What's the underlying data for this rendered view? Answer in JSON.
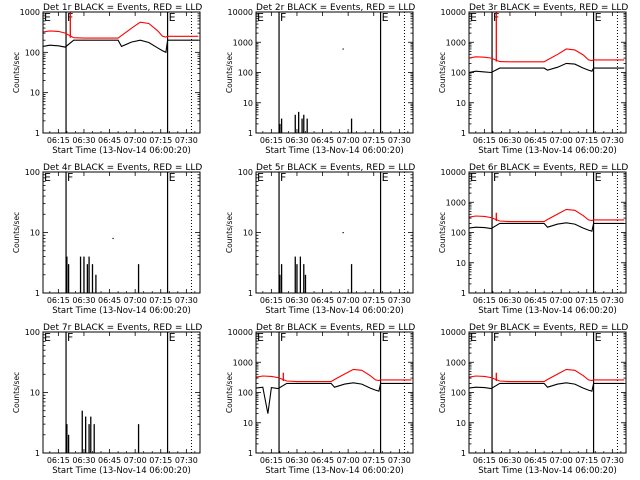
{
  "figure": {
    "title_suffix": "BLACK = Events, RED = LLD",
    "xlabel": "Start Time (13-Nov-14 06:00:20)",
    "ylabel": "Counts/sec",
    "x_ticks": [
      "06:15",
      "06:30",
      "06:45",
      "07:00",
      "07:15",
      "07:30"
    ],
    "x_tick_minutes": [
      15,
      30,
      45,
      60,
      75,
      90
    ],
    "xlim_minutes": [
      6,
      98
    ],
    "markers": {
      "F": {
        "label": "F",
        "x_minutes": 19.5
      },
      "E_solid": {
        "label": "E",
        "x_minutes": 79
      },
      "E_dotted": {
        "x_minutes": 93
      }
    },
    "colors": {
      "events": "#000000",
      "lld": "#ff0000"
    }
  },
  "chart_data": [
    {
      "type": "line",
      "title": "Det 1r BLACK = Events, RED = LLD",
      "det": "Det 1r",
      "yscale": "log",
      "ylim": [
        1,
        1000
      ],
      "y_ticks": [
        "1000",
        "100",
        "10",
        "1"
      ],
      "series": [
        {
          "name": "Events",
          "color": "#000000",
          "x": [
            6,
            10,
            15,
            19,
            24,
            30,
            40,
            50,
            52,
            58,
            63,
            68,
            73,
            76,
            78,
            79,
            82,
            85,
            90,
            97
          ],
          "y": [
            140,
            150,
            145,
            135,
            200,
            200,
            200,
            200,
            140,
            180,
            200,
            175,
            130,
            110,
            100,
            200,
            200,
            200,
            200,
            200
          ]
        },
        {
          "name": "LLD",
          "color": "#ff0000",
          "x": [
            6,
            10,
            15,
            19,
            24,
            30,
            40,
            50,
            52,
            58,
            63,
            68,
            73,
            76,
            78,
            79,
            82,
            85,
            90,
            97
          ],
          "y": [
            320,
            340,
            330,
            300,
            230,
            225,
            225,
            225,
            260,
            400,
            560,
            520,
            350,
            250,
            240,
            250,
            250,
            250,
            250,
            250
          ],
          "spikes": [
            {
              "x": 22,
              "top": 1300
            }
          ]
        }
      ]
    },
    {
      "type": "line",
      "title": "Det 2r BLACK = Events, RED = LLD",
      "det": "Det 2r",
      "yscale": "log",
      "ylim": [
        1,
        10000
      ],
      "y_ticks": [
        "10000",
        "1000",
        "100",
        "10",
        "1"
      ],
      "series": [
        {
          "name": "Events",
          "color": "#000000",
          "spikes": [
            {
              "x": 20,
              "top": 2
            },
            {
              "x": 21,
              "top": 3
            },
            {
              "x": 29,
              "top": 4
            },
            {
              "x": 31,
              "top": 5
            },
            {
              "x": 33,
              "top": 3
            },
            {
              "x": 34,
              "top": 4
            },
            {
              "x": 36,
              "top": 3
            },
            {
              "x": 62,
              "top": 3
            }
          ],
          "points": [
            {
              "x": 57,
              "y": 600
            }
          ]
        }
      ]
    },
    {
      "type": "line",
      "title": "Det 3r BLACK = Events, RED = LLD",
      "det": "Det 3r",
      "yscale": "log",
      "ylim": [
        1,
        10000
      ],
      "y_ticks": [
        "10000",
        "1000",
        "100",
        "10",
        "1"
      ],
      "series": [
        {
          "name": "Events",
          "color": "#000000",
          "x": [
            6,
            10,
            15,
            19,
            24,
            30,
            40,
            50,
            52,
            58,
            63,
            68,
            73,
            76,
            78,
            79,
            82,
            85,
            90,
            97
          ],
          "y": [
            100,
            110,
            105,
            100,
            140,
            140,
            140,
            140,
            120,
            150,
            200,
            190,
            140,
            120,
            110,
            140,
            140,
            140,
            140,
            140
          ]
        },
        {
          "name": "LLD",
          "color": "#ff0000",
          "x": [
            6,
            10,
            15,
            19,
            24,
            30,
            40,
            50,
            52,
            58,
            63,
            68,
            73,
            76,
            78,
            79,
            82,
            85,
            90,
            97
          ],
          "y": [
            300,
            330,
            320,
            300,
            230,
            225,
            225,
            225,
            260,
            400,
            600,
            560,
            380,
            260,
            250,
            260,
            260,
            260,
            260,
            260
          ],
          "spikes": [
            {
              "x": 22,
              "top": 12000
            }
          ]
        }
      ]
    },
    {
      "type": "line",
      "title": "Det 4r BLACK = Events, RED = LLD",
      "det": "Det 4r",
      "yscale": "log",
      "ylim": [
        1,
        100
      ],
      "y_ticks": [
        "100",
        "10",
        "1"
      ],
      "series": [
        {
          "name": "Events",
          "color": "#000000",
          "spikes": [
            {
              "x": 20,
              "top": 4
            },
            {
              "x": 21,
              "top": 3
            },
            {
              "x": 28,
              "top": 4
            },
            {
              "x": 30,
              "top": 4
            },
            {
              "x": 32,
              "top": 3
            },
            {
              "x": 33,
              "top": 4
            },
            {
              "x": 35,
              "top": 3
            },
            {
              "x": 37,
              "top": 2
            },
            {
              "x": 62,
              "top": 3
            }
          ],
          "points": [
            {
              "x": 47,
              "y": 8
            }
          ]
        }
      ]
    },
    {
      "type": "line",
      "title": "Det 5r BLACK = Events, RED = LLD",
      "det": "Det 5r",
      "yscale": "log",
      "ylim": [
        1,
        100
      ],
      "y_ticks": [
        "100",
        "10",
        "1"
      ],
      "series": [
        {
          "name": "Events",
          "color": "#000000",
          "spikes": [
            {
              "x": 20,
              "top": 2
            },
            {
              "x": 21,
              "top": 3
            },
            {
              "x": 29,
              "top": 4
            },
            {
              "x": 30,
              "top": 3
            },
            {
              "x": 32,
              "top": 4
            },
            {
              "x": 34,
              "top": 3
            },
            {
              "x": 35,
              "top": 2
            },
            {
              "x": 62,
              "top": 3
            }
          ],
          "points": [
            {
              "x": 57,
              "y": 10
            }
          ]
        }
      ]
    },
    {
      "type": "line",
      "title": "Det 6r BLACK = Events, RED = LLD",
      "det": "Det 6r",
      "yscale": "log",
      "ylim": [
        1,
        10000
      ],
      "y_ticks": [
        "10000",
        "1000",
        "100",
        "10",
        "1"
      ],
      "series": [
        {
          "name": "Events",
          "color": "#000000",
          "x": [
            6,
            10,
            15,
            19,
            24,
            30,
            40,
            50,
            52,
            58,
            63,
            68,
            73,
            76,
            78,
            79,
            82,
            85,
            90,
            97
          ],
          "y": [
            140,
            150,
            145,
            135,
            200,
            200,
            200,
            200,
            150,
            190,
            210,
            190,
            140,
            120,
            110,
            200,
            200,
            200,
            200,
            200
          ]
        },
        {
          "name": "LLD",
          "color": "#ff0000",
          "x": [
            6,
            10,
            15,
            19,
            24,
            30,
            40,
            50,
            52,
            58,
            63,
            68,
            73,
            76,
            78,
            79,
            82,
            85,
            90,
            97
          ],
          "y": [
            320,
            350,
            340,
            310,
            240,
            230,
            230,
            230,
            270,
            410,
            580,
            540,
            360,
            260,
            250,
            260,
            260,
            260,
            260,
            260
          ],
          "spikes": [
            {
              "x": 22,
              "top": 450
            }
          ]
        }
      ]
    },
    {
      "type": "line",
      "title": "Det 7r BLACK = Events, RED = LLD",
      "det": "Det 7r",
      "yscale": "log",
      "ylim": [
        1,
        100
      ],
      "y_ticks": [
        "100",
        "10",
        "1"
      ],
      "series": [
        {
          "name": "Events",
          "color": "#000000",
          "spikes": [
            {
              "x": 20,
              "top": 3
            },
            {
              "x": 21,
              "top": 2
            },
            {
              "x": 29,
              "top": 5
            },
            {
              "x": 31,
              "top": 4
            },
            {
              "x": 33,
              "top": 3
            },
            {
              "x": 34,
              "top": 4
            },
            {
              "x": 36,
              "top": 3
            },
            {
              "x": 62,
              "top": 3
            }
          ]
        }
      ]
    },
    {
      "type": "line",
      "title": "Det 8r BLACK = Events, RED = LLD",
      "det": "Det 8r",
      "yscale": "log",
      "ylim": [
        1,
        10000
      ],
      "y_ticks": [
        "10000",
        "1000",
        "100",
        "10",
        "1"
      ],
      "series": [
        {
          "name": "Events",
          "color": "#000000",
          "x": [
            6,
            10,
            13,
            15,
            19,
            24,
            30,
            40,
            50,
            52,
            58,
            63,
            68,
            73,
            76,
            78,
            79,
            82,
            85,
            90,
            97
          ],
          "y": [
            140,
            150,
            20,
            145,
            135,
            200,
            200,
            200,
            200,
            150,
            190,
            210,
            190,
            140,
            120,
            110,
            200,
            200,
            200,
            200,
            200
          ]
        },
        {
          "name": "LLD",
          "color": "#ff0000",
          "x": [
            6,
            10,
            15,
            19,
            24,
            30,
            40,
            50,
            52,
            58,
            63,
            68,
            73,
            76,
            78,
            79,
            82,
            85,
            90,
            97
          ],
          "y": [
            320,
            350,
            340,
            310,
            240,
            230,
            230,
            230,
            270,
            410,
            580,
            540,
            360,
            260,
            250,
            260,
            260,
            260,
            260,
            260
          ],
          "spikes": [
            {
              "x": 22,
              "top": 450
            }
          ]
        }
      ]
    },
    {
      "type": "line",
      "title": "Det 9r BLACK = Events, RED = LLD",
      "det": "Det 9r",
      "yscale": "log",
      "ylim": [
        1,
        10000
      ],
      "y_ticks": [
        "10000",
        "1000",
        "100",
        "10",
        "1"
      ],
      "series": [
        {
          "name": "Events",
          "color": "#000000",
          "x": [
            6,
            10,
            15,
            19,
            24,
            30,
            40,
            50,
            52,
            58,
            63,
            68,
            73,
            76,
            78,
            79,
            82,
            85,
            90,
            97
          ],
          "y": [
            140,
            150,
            145,
            135,
            200,
            200,
            200,
            200,
            150,
            190,
            210,
            190,
            140,
            120,
            110,
            200,
            200,
            200,
            200,
            200
          ]
        },
        {
          "name": "LLD",
          "color": "#ff0000",
          "x": [
            6,
            10,
            15,
            19,
            24,
            30,
            40,
            50,
            52,
            58,
            63,
            68,
            73,
            76,
            78,
            79,
            82,
            85,
            90,
            97
          ],
          "y": [
            320,
            350,
            340,
            310,
            240,
            230,
            230,
            230,
            270,
            410,
            580,
            540,
            360,
            260,
            250,
            260,
            260,
            260,
            260,
            260
          ],
          "spikes": [
            {
              "x": 22,
              "top": 450
            }
          ]
        }
      ]
    }
  ]
}
